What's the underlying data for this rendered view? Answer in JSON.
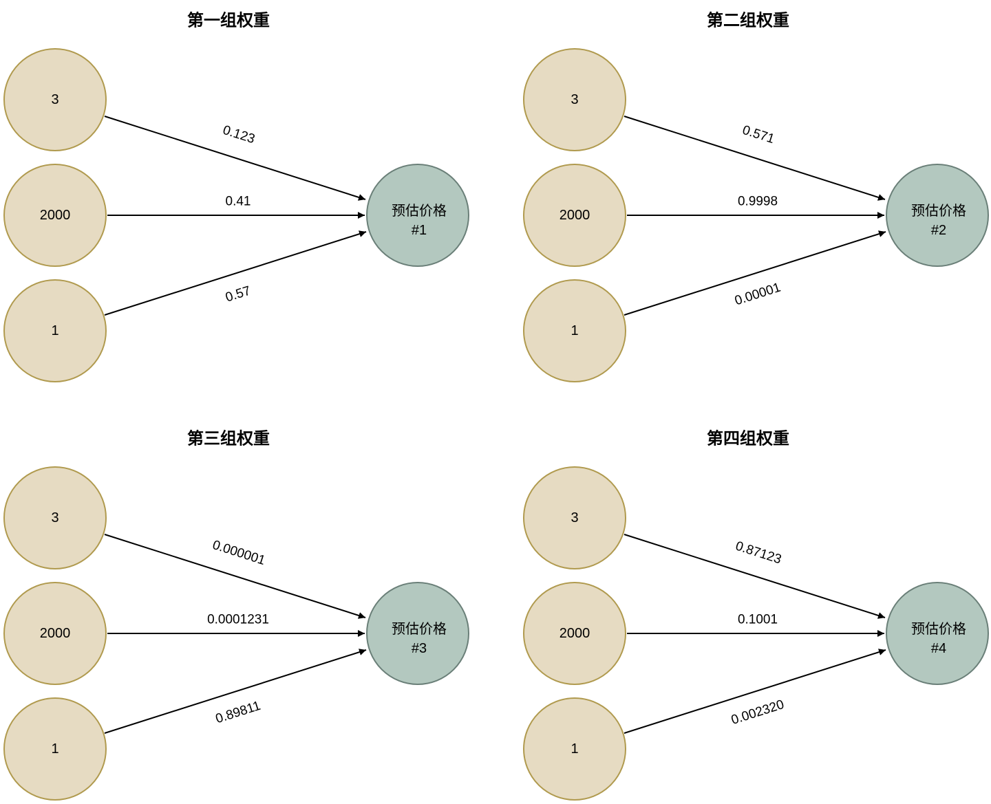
{
  "colors": {
    "input_fill": "#e6dbc2",
    "input_stroke": "#b09a4e",
    "output_fill": "#b3c8bf",
    "output_stroke": "#6a7f78",
    "edge": "#000000"
  },
  "panels": [
    {
      "title": "第一组权重",
      "inputs": [
        "3",
        "2000",
        "1"
      ],
      "weights": [
        "0.123",
        "0.41",
        "0.57"
      ],
      "output_line1": "预估价格",
      "output_line2": "#1"
    },
    {
      "title": "第二组权重",
      "inputs": [
        "3",
        "2000",
        "1"
      ],
      "weights": [
        "0.571",
        "0.9998",
        "0.00001"
      ],
      "output_line1": "预估价格",
      "output_line2": "#2"
    },
    {
      "title": "第三组权重",
      "inputs": [
        "3",
        "2000",
        "1"
      ],
      "weights": [
        "0.000001",
        "0.0001231",
        "0.89811"
      ],
      "output_line1": "预估价格",
      "output_line2": "#3"
    },
    {
      "title": "第四组权重",
      "inputs": [
        "3",
        "2000",
        "1"
      ],
      "weights": [
        "0.87123",
        "0.1001",
        "0.002320"
      ],
      "output_line1": "预估价格",
      "output_line2": "#4"
    }
  ]
}
